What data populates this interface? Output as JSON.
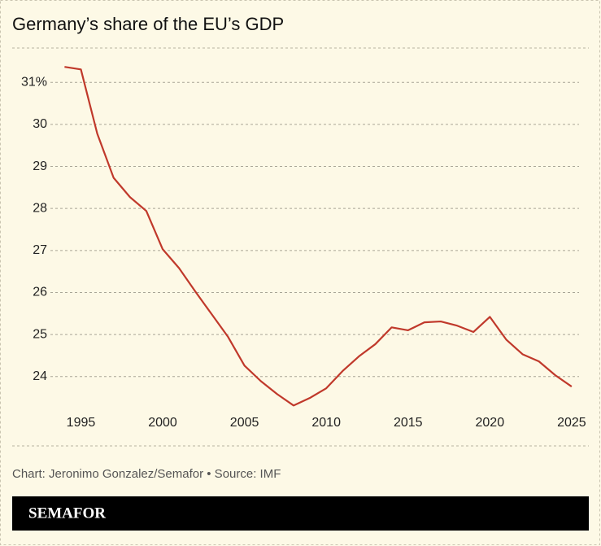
{
  "chart_data": {
    "type": "line",
    "title": "Germany’s share of the EU’s GDP",
    "source": "Chart: Jeronimo Gonzalez/Semafor • Source: IMF",
    "brand": "SEMAFOR",
    "x": [
      1994,
      1995,
      1996,
      1997,
      1998,
      1999,
      2000,
      2001,
      2002,
      2003,
      2004,
      2005,
      2006,
      2007,
      2008,
      2009,
      2010,
      2011,
      2012,
      2013,
      2014,
      2015,
      2016,
      2017,
      2018,
      2019,
      2020,
      2021,
      2022,
      2023,
      2024,
      2025
    ],
    "series": [
      {
        "name": "Germany",
        "color": "#c0392b",
        "values": [
          31.37,
          31.31,
          29.78,
          28.73,
          28.27,
          27.94,
          27.03,
          26.58,
          26.02,
          25.48,
          24.94,
          24.26,
          23.89,
          23.58,
          23.31,
          23.49,
          23.72,
          24.13,
          24.48,
          24.77,
          25.17,
          25.1,
          25.29,
          25.31,
          25.21,
          25.06,
          25.42,
          24.88,
          24.53,
          24.36,
          24.03,
          23.76
        ]
      }
    ],
    "xlim": [
      1990.8,
      2026.1
    ],
    "xticks": [
      1995,
      2000,
      2005,
      2010,
      2015,
      2020,
      2025
    ],
    "ylim": [
      23.2,
      31.8
    ],
    "yticks": [
      24,
      25,
      26,
      27,
      28,
      29,
      30,
      {
        "value": 31,
        "label": "31%"
      }
    ],
    "grid": true
  }
}
